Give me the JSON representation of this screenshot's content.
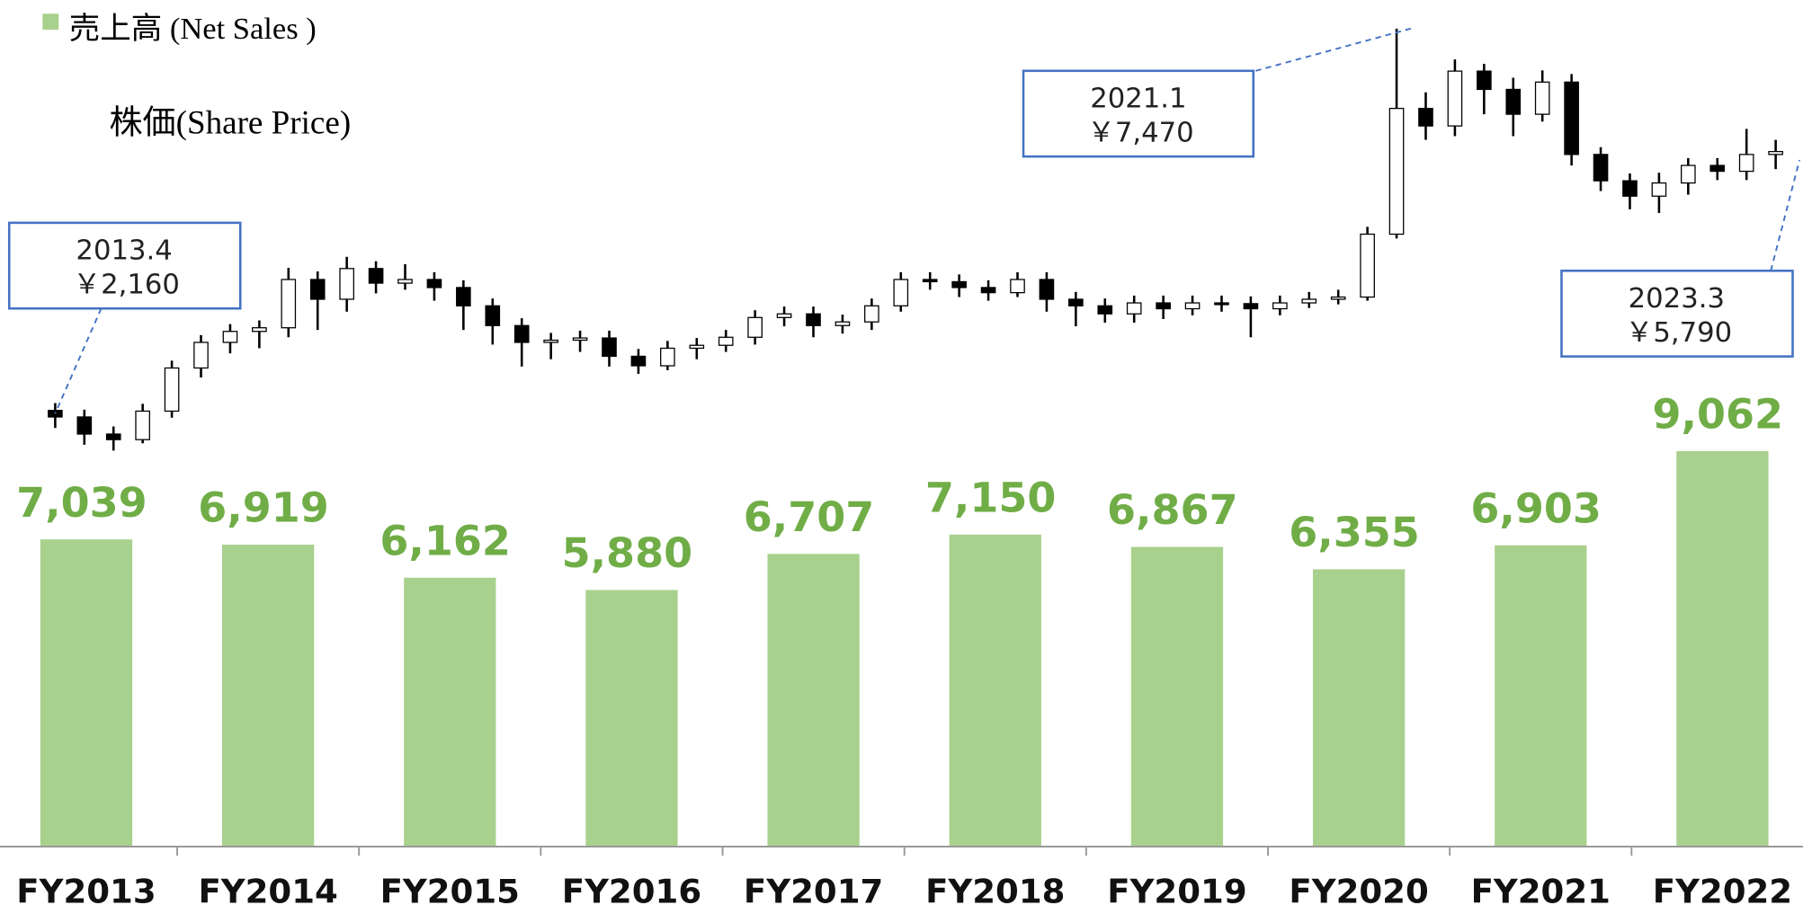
{
  "chart_data": [
    {
      "type": "bar",
      "categories": [
        "FY2013",
        "FY2014",
        "FY2015",
        "FY2016",
        "FY2017",
        "FY2018",
        "FY2019",
        "FY2020",
        "FY2021",
        "FY2022"
      ],
      "series": [
        {
          "name": "売上高 (Net Sales )",
          "color": "#a9d18e",
          "label_color": "#70ad47",
          "values": [
            7039,
            6919,
            6162,
            5880,
            6707,
            7150,
            6867,
            6355,
            6903,
            9062
          ],
          "value_labels": [
            "7,039",
            "6,919",
            "6,162",
            "5,880",
            "6,707",
            "7,150",
            "6,867",
            "6,355",
            "6,903",
            "9,062"
          ]
        }
      ],
      "ylim": [
        0,
        19400
      ]
    },
    {
      "type": "candlestick",
      "title": "株価(Share Price)",
      "y2lim": [
        1600,
        7850
      ],
      "open": [
        2250,
        2160,
        1926,
        1850,
        2240,
        2830,
        3180,
        3330,
        3380,
        4040,
        3770,
        4190,
        3990,
        4040,
        3930,
        3680,
        3410,
        3180,
        3210,
        3240,
        2990,
        2860,
        3100,
        3140,
        3250,
        3520,
        3570,
        3410,
        3460,
        3680,
        4040,
        4010,
        3930,
        3860,
        4040,
        3770,
        3680,
        3570,
        3720,
        3640,
        3720,
        3710,
        3640,
        3720,
        3770,
        3800,
        4660,
        6380,
        6140,
        6890,
        6640,
        6300,
        6740,
        5750,
        5390,
        5180,
        5360,
        5600,
        5520,
        5750
      ],
      "high": [
        2350,
        2260,
        2030,
        2340,
        2930,
        3280,
        3430,
        3480,
        4200,
        4150,
        4350,
        4290,
        4250,
        4140,
        4030,
        3780,
        3510,
        3310,
        3340,
        3340,
        3090,
        3200,
        3240,
        3350,
        3620,
        3670,
        3670,
        3560,
        3780,
        4140,
        4140,
        4110,
        4030,
        4140,
        4140,
        3870,
        3780,
        3820,
        3820,
        3820,
        3820,
        3810,
        3820,
        3870,
        3900,
        4760,
        7470,
        6600,
        7050,
        6990,
        6800,
        6900,
        6850,
        5850,
        5490,
        5500,
        5700,
        5700,
        6100,
        5950
      ],
      "low": [
        2010,
        1780,
        1700,
        1800,
        2150,
        2700,
        3030,
        3100,
        3250,
        3350,
        3600,
        3850,
        3900,
        3750,
        3350,
        3150,
        2850,
        2950,
        3050,
        2850,
        2750,
        2800,
        2950,
        3050,
        3150,
        3400,
        3250,
        3300,
        3350,
        3600,
        3900,
        3800,
        3750,
        3800,
        3600,
        3400,
        3450,
        3450,
        3500,
        3550,
        3600,
        3250,
        3550,
        3650,
        3700,
        3750,
        4600,
        5950,
        6000,
        6300,
        6000,
        6200,
        5600,
        5250,
        5000,
        4950,
        5200,
        5400,
        5400,
        5550
      ],
      "close": [
        2160,
        1926,
        1850,
        2240,
        2830,
        3180,
        3330,
        3380,
        4040,
        3770,
        4190,
        3990,
        4040,
        3930,
        3680,
        3410,
        3180,
        3210,
        3240,
        2990,
        2860,
        3100,
        3140,
        3250,
        3520,
        3570,
        3410,
        3460,
        3680,
        4040,
        4010,
        3930,
        3860,
        4040,
        3770,
        3680,
        3570,
        3720,
        3640,
        3720,
        3710,
        3640,
        3720,
        3770,
        3800,
        4660,
        6380,
        6140,
        6890,
        6640,
        6300,
        6740,
        5750,
        5390,
        5180,
        5360,
        5600,
        5520,
        5750,
        5790
      ],
      "annotations": [
        {
          "date": "2013.4",
          "price": "￥2,160"
        },
        {
          "date": "2021.1",
          "price": "￥7,470"
        },
        {
          "date": "2023.3",
          "price": "￥5,790"
        }
      ]
    }
  ]
}
